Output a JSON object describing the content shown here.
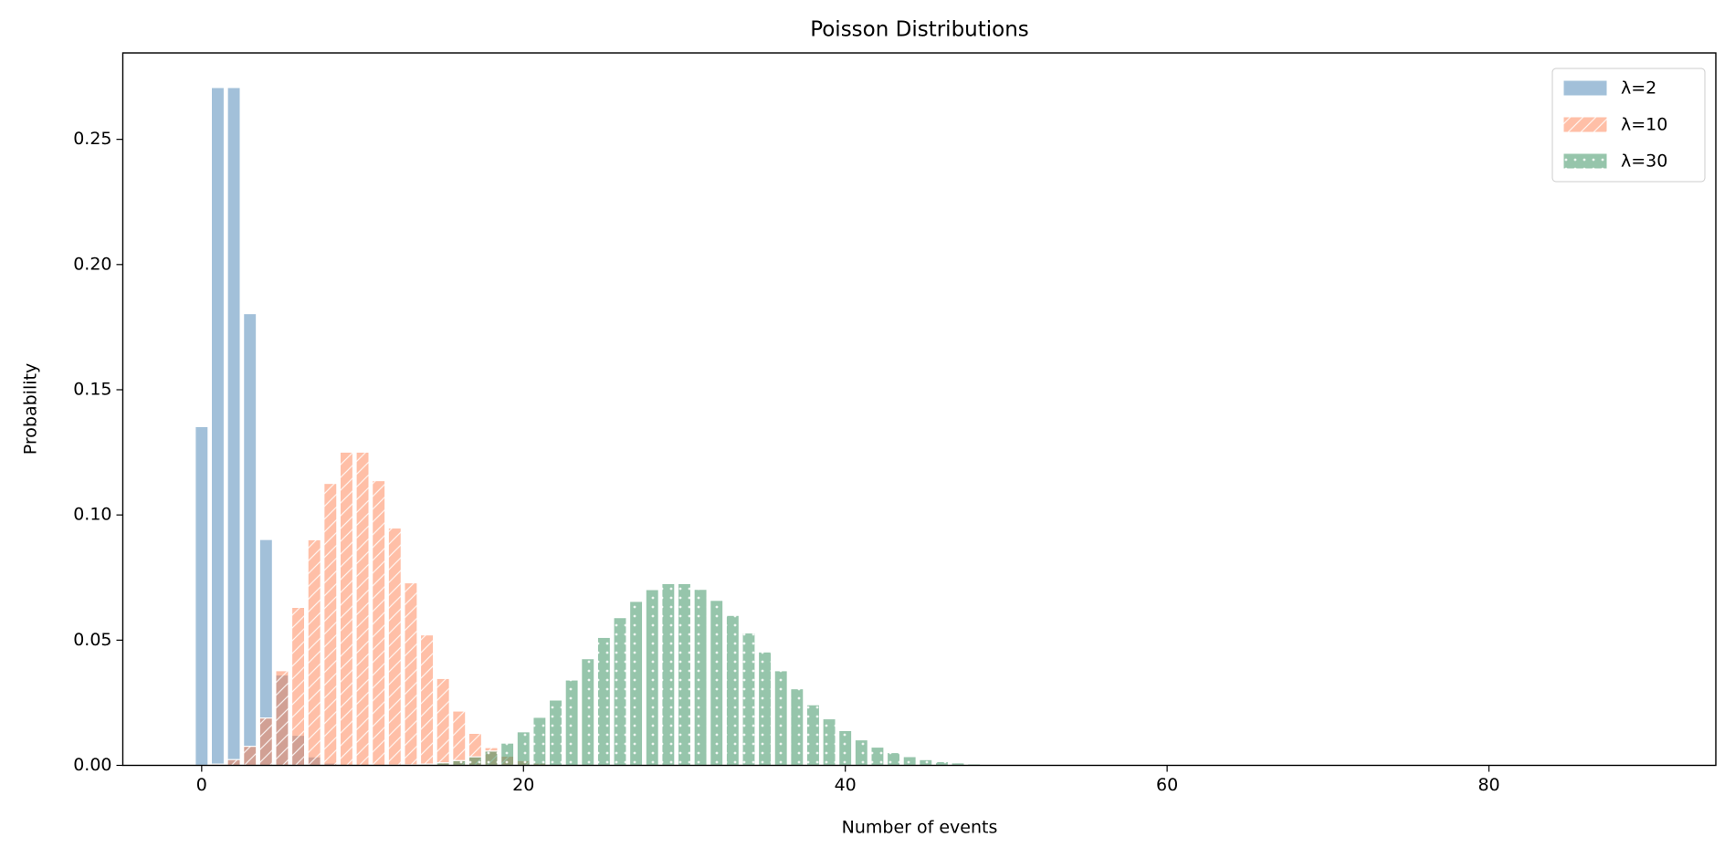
{
  "chart_data": {
    "type": "bar",
    "title": "Poisson Distributions",
    "x_label": "Number of events",
    "y_label": "Probability",
    "x": [
      0,
      1,
      2,
      3,
      4,
      5,
      6,
      7,
      8,
      9,
      10,
      11,
      12,
      13,
      14,
      15,
      16,
      17,
      18,
      19,
      20,
      21,
      22,
      23,
      24,
      25,
      26,
      27,
      28,
      29,
      30,
      31,
      32,
      33,
      34,
      35,
      36,
      37,
      38,
      39,
      40,
      41,
      42,
      43,
      44,
      45,
      46,
      47,
      48,
      49,
      50
    ],
    "series": [
      {
        "name": "λ=2",
        "color": "#4682b4",
        "hatch": null,
        "values": [
          0.1353,
          0.2707,
          0.2707,
          0.1804,
          0.0902,
          0.0361,
          0.012,
          0.0034,
          0.0009,
          0.0002,
          0,
          0,
          0,
          0,
          0,
          0,
          0,
          0,
          0,
          0,
          0,
          0,
          0,
          0,
          0,
          0,
          0,
          0,
          0,
          0,
          0,
          0,
          0,
          0,
          0,
          0,
          0,
          0,
          0,
          0,
          0,
          0,
          0,
          0,
          0,
          0,
          0,
          0,
          0,
          0,
          0
        ]
      },
      {
        "name": "λ=10",
        "color": "#ff7f50",
        "hatch": "/",
        "values": [
          0,
          0.0005,
          0.0023,
          0.0076,
          0.0189,
          0.0378,
          0.0631,
          0.0901,
          0.1126,
          0.1251,
          0.1251,
          0.1137,
          0.0948,
          0.0729,
          0.0521,
          0.0347,
          0.0217,
          0.0128,
          0.0071,
          0.0037,
          0.0019,
          0.0009,
          0.0004,
          0.0002,
          0.0001,
          0,
          0,
          0,
          0,
          0,
          0,
          0,
          0,
          0,
          0,
          0,
          0,
          0,
          0,
          0,
          0,
          0,
          0,
          0,
          0,
          0,
          0,
          0,
          0,
          0,
          0
        ]
      },
      {
        "name": "λ=30",
        "color": "#2e8b57",
        "hatch": ".",
        "values": [
          0,
          0,
          0,
          0,
          0,
          0,
          0,
          0,
          0,
          0,
          0,
          0,
          0.0001,
          0.0002,
          0.0005,
          0.001,
          0.0019,
          0.0034,
          0.0057,
          0.0089,
          0.0134,
          0.0192,
          0.0261,
          0.0341,
          0.0426,
          0.0511,
          0.059,
          0.0655,
          0.0702,
          0.0726,
          0.0726,
          0.0703,
          0.0659,
          0.0599,
          0.0529,
          0.0453,
          0.0378,
          0.0306,
          0.0242,
          0.0186,
          0.0139,
          0.0102,
          0.0073,
          0.0051,
          0.0035,
          0.0023,
          0.0015,
          0.001,
          0.0006,
          0.0004,
          0.0002
        ]
      }
    ],
    "xlim": [
      -4.9,
      94.1
    ],
    "xticks": [
      0,
      20,
      40,
      60,
      80
    ],
    "ylim": [
      0,
      0.2845
    ],
    "yticks": [
      {
        "value": 0,
        "label": "0.00"
      },
      {
        "value": 0.05,
        "label": "0.05"
      },
      {
        "value": 0.1,
        "label": "0.10"
      },
      {
        "value": 0.15,
        "label": "0.15"
      },
      {
        "value": 0.2,
        "label": "0.20"
      },
      {
        "value": 0.25,
        "label": "0.25"
      }
    ],
    "legend": "upper right",
    "grid": false
  }
}
